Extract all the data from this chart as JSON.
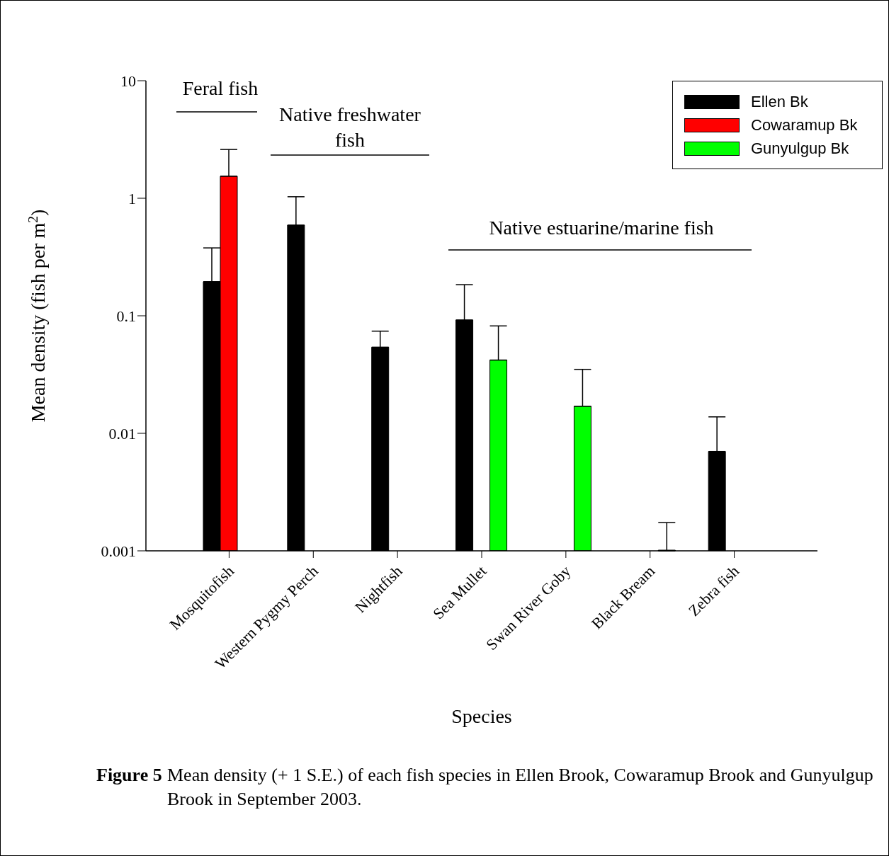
{
  "chart_data": {
    "type": "bar",
    "ylabel": "Mean density (fish per m$^{2}$)",
    "xlabel": "Species",
    "categories": [
      "Mosquitofish",
      "Western Pygmy Perch",
      "Nightfish",
      "Sea Mullet",
      "Swan River Goby",
      "Black Bream",
      "Zebra fish"
    ],
    "series": [
      {
        "name": "Ellen Bk",
        "color": "#000000",
        "values": [
          0.195,
          0.59,
          0.054,
          0.092,
          null,
          null,
          0.007
        ],
        "errors": [
          [
            0.195,
            0.378
          ],
          [
            0.59,
            1.03
          ],
          [
            0.054,
            0.074
          ],
          [
            0.092,
            0.184
          ],
          null,
          null,
          [
            0.007,
            0.0138
          ]
        ]
      },
      {
        "name": "Cowaramup Bk",
        "color": "#ff0000",
        "values": [
          1.54,
          null,
          null,
          null,
          null,
          null,
          null
        ],
        "errors": [
          [
            1.54,
            2.6
          ],
          null,
          null,
          null,
          null,
          null,
          null
        ]
      },
      {
        "name": "Gunyulgup Bk",
        "color": "#00ff00",
        "values": [
          null,
          null,
          null,
          0.042,
          0.017,
          0.001,
          null
        ],
        "errors": [
          null,
          null,
          null,
          [
            0.042,
            0.082
          ],
          [
            0.017,
            0.035
          ],
          [
            0.001,
            0.00174
          ],
          null
        ]
      }
    ],
    "log": "y",
    "ylim": [
      0.001,
      10
    ],
    "yticks": [
      0.001,
      0.01,
      0.1,
      1,
      10
    ],
    "legend": "top right",
    "grid": false,
    "annotations": [
      "Feral fish",
      "Native freshwater fish",
      "Native estuarine/marine fish",
      "Figure 5",
      "Mean density (+ 1 S.E.) of each fish species in Ellen Brook, Cowaramup Brook and Gunyulgup Brook in September 2003."
    ]
  }
}
